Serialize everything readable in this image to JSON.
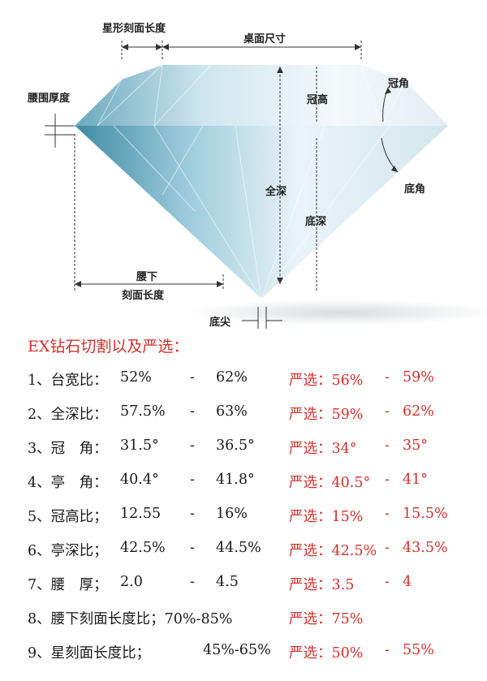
{
  "diagram": {
    "labels": {
      "star_length": "星形刻面长度",
      "table_size": "桌面尺寸",
      "girdle_thickness": "腰围厚度",
      "crown_angle": "冠角",
      "crown_height": "冠高",
      "total_depth": "全深",
      "pavilion_angle": "底角",
      "pavilion_depth": "底深",
      "lower_half_line1": "腰下",
      "lower_half_line2": "刻面长度",
      "culet": "底尖"
    }
  },
  "title": "EX钻石切割以及严选：",
  "colors": {
    "accent": "#d2302c",
    "text": "#1a1a1a",
    "diamond_light": "#cfe6ee",
    "diamond_dark": "#5a9bb0"
  },
  "rows": [
    {
      "label": "1、台宽比：",
      "min": "52%",
      "dash": "-",
      "max": "62%",
      "sel": "严选：56%",
      "sel_dash": "-",
      "sel_max": "59%"
    },
    {
      "label": "2、全深比：",
      "min": "57.5%",
      "dash": "-",
      "max": "63%",
      "sel": "严选：59%",
      "sel_dash": "-",
      "sel_max": "62%"
    },
    {
      "label": "3、冠　角：",
      "min": "31.5°",
      "dash": "-",
      "max": "36.5°",
      "sel": "严选：34°",
      "sel_dash": "-",
      "sel_max": "35°"
    },
    {
      "label": "4、亭　角：",
      "min": "40.4°",
      "dash": "-",
      "max": "41.8°",
      "sel": "严选：40.5°",
      "sel_dash": "-",
      "sel_max": "41°"
    },
    {
      "label": "5、冠高比；",
      "min": "12.55",
      "dash": "-",
      "max": "16%",
      "sel": "严选：15%",
      "sel_dash": "-",
      "sel_max": "15.5%"
    },
    {
      "label": "6、亭深比；",
      "min": "42.5%",
      "dash": "-",
      "max": "44.5%",
      "sel": "严选：42.5%",
      "sel_dash": "-",
      "sel_max": "43.5%"
    },
    {
      "label": "7、腰　厚；",
      "min": "2.0",
      "dash": "-",
      "max": "4.5",
      "sel": "严选：3.5",
      "sel_dash": "-",
      "sel_max": "4"
    },
    {
      "label": "8、腰下刻面长度比；70%-85%",
      "min": "",
      "dash": "",
      "max": "",
      "sel": "严选：75%",
      "sel_dash": "",
      "sel_max": ""
    },
    {
      "label": "9、星刻面长度比；",
      "min": "",
      "dash": "",
      "max": "45%-65%",
      "sel": "严选：50%",
      "sel_dash": "-",
      "sel_max": "55%"
    }
  ]
}
